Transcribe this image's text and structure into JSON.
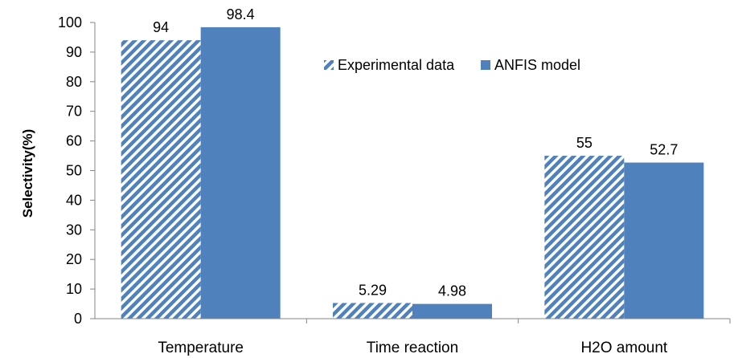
{
  "chart_data": {
    "type": "bar",
    "categories": [
      "Temperature",
      "Time reaction",
      "H2O amount"
    ],
    "series": [
      {
        "name": "Experimental data",
        "values": [
          94,
          5.29,
          55
        ],
        "labels": [
          "94",
          "5.29",
          "55"
        ],
        "color": "#4f81bd",
        "pattern": "diagonal-stripes"
      },
      {
        "name": "ANFIS model",
        "values": [
          98.4,
          4.98,
          52.7
        ],
        "labels": [
          "98.4",
          "4.98",
          "52.7"
        ],
        "color": "#4f81bd",
        "pattern": "solid"
      }
    ],
    "title": "",
    "xlabel": "",
    "ylabel": "Selectivity(%)",
    "ylim": [
      0,
      100
    ],
    "yticks": [
      "0",
      "10",
      "20",
      "30",
      "40",
      "50",
      "60",
      "70",
      "80",
      "90",
      "100"
    ],
    "grid": false,
    "legend_position": "top-right, inside plot"
  }
}
